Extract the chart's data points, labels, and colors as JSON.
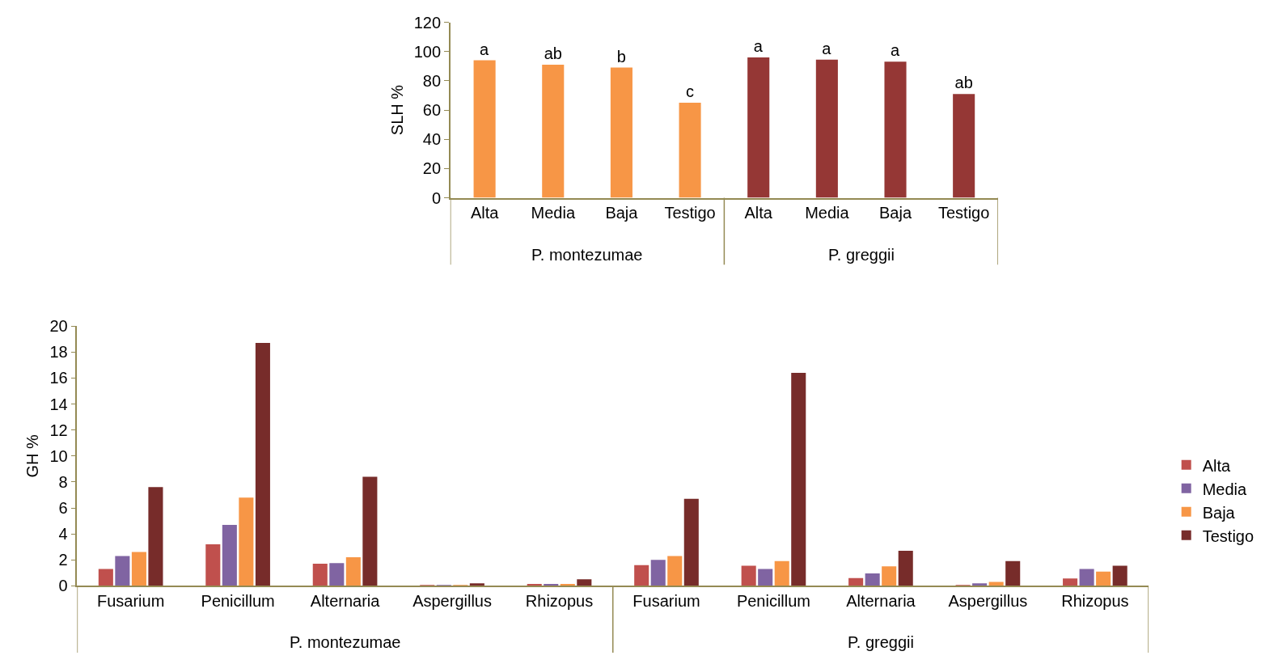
{
  "chart_data": [
    {
      "type": "bar",
      "ylabel": "SLH %",
      "categories": [
        "Alta",
        "Media",
        "Baja",
        "Testigo",
        "Alta",
        "Media",
        "Baja",
        "Testigo"
      ],
      "values": [
        94,
        91,
        89,
        65,
        96,
        94.5,
        93,
        71
      ],
      "colors": [
        "#f79646",
        "#f79646",
        "#f79646",
        "#f79646",
        "#953735",
        "#953735",
        "#953735",
        "#953735"
      ],
      "value_labels": [
        "a",
        "ab",
        "b",
        "c",
        "a",
        "a",
        "a",
        "ab"
      ],
      "ylim": [
        0,
        120
      ],
      "yticks": [
        0,
        20,
        40,
        60,
        80,
        100,
        120
      ],
      "annotations": [
        "P. montezumae",
        "P. greggii"
      ]
    },
    {
      "type": "bar",
      "ylabel": "GH %",
      "categories": [
        "Fusarium",
        "Penicillum",
        "Alternaria",
        "Aspergillus",
        "Rhizopus",
        "Fusarium",
        "Penicillum",
        "Alternaria",
        "Aspergillus",
        "Rhizopus"
      ],
      "series": [
        {
          "name": "Alta",
          "color": "#c0504d",
          "values": [
            1.3,
            3.2,
            1.7,
            0.02,
            0.15,
            1.6,
            1.55,
            0.6,
            0.05,
            0.57
          ]
        },
        {
          "name": "Media",
          "color": "#8064a2",
          "values": [
            2.3,
            4.7,
            1.75,
            0.05,
            0.15,
            2.0,
            1.3,
            0.95,
            0.2,
            1.3
          ]
        },
        {
          "name": "Baja",
          "color": "#f79646",
          "values": [
            2.6,
            6.8,
            2.2,
            0.02,
            0.15,
            2.3,
            1.9,
            1.5,
            0.3,
            1.1
          ]
        },
        {
          "name": "Testigo",
          "color": "#772c2a",
          "values": [
            7.6,
            18.7,
            8.4,
            0.2,
            0.5,
            6.7,
            16.4,
            2.7,
            1.9,
            1.55
          ]
        }
      ],
      "ylim": [
        0,
        20
      ],
      "yticks": [
        0,
        2,
        4,
        6,
        8,
        10,
        12,
        14,
        16,
        18,
        20
      ],
      "legend": "right",
      "annotations": [
        "P. montezumae",
        "P. greggii"
      ]
    }
  ]
}
